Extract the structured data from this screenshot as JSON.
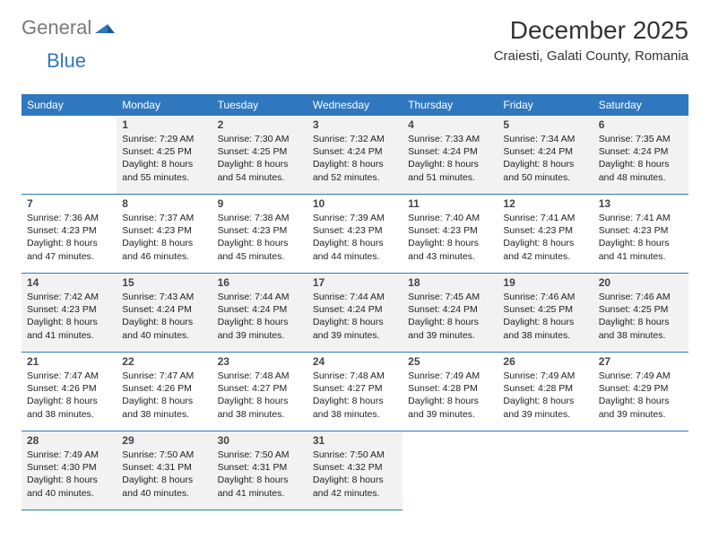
{
  "logo": {
    "part1": "General",
    "part2": "Blue"
  },
  "title": "December 2025",
  "subtitle": "Craiesti, Galati County, Romania",
  "colors": {
    "header_bg": "#2f78bf",
    "header_text": "#ffffff",
    "cell_bg": "#f2f2f2",
    "cell_alt_bg": "#ffffff",
    "border": "#2f78bf",
    "logo_gray": "#7a7a7a",
    "logo_blue": "#2f78bf"
  },
  "weekdays": [
    "Sunday",
    "Monday",
    "Tuesday",
    "Wednesday",
    "Thursday",
    "Friday",
    "Saturday"
  ],
  "start_offset": 1,
  "days": [
    {
      "n": 1,
      "sunrise": "7:29 AM",
      "sunset": "4:25 PM",
      "daylight": "8 hours and 55 minutes."
    },
    {
      "n": 2,
      "sunrise": "7:30 AM",
      "sunset": "4:25 PM",
      "daylight": "8 hours and 54 minutes."
    },
    {
      "n": 3,
      "sunrise": "7:32 AM",
      "sunset": "4:24 PM",
      "daylight": "8 hours and 52 minutes."
    },
    {
      "n": 4,
      "sunrise": "7:33 AM",
      "sunset": "4:24 PM",
      "daylight": "8 hours and 51 minutes."
    },
    {
      "n": 5,
      "sunrise": "7:34 AM",
      "sunset": "4:24 PM",
      "daylight": "8 hours and 50 minutes."
    },
    {
      "n": 6,
      "sunrise": "7:35 AM",
      "sunset": "4:24 PM",
      "daylight": "8 hours and 48 minutes."
    },
    {
      "n": 7,
      "sunrise": "7:36 AM",
      "sunset": "4:23 PM",
      "daylight": "8 hours and 47 minutes."
    },
    {
      "n": 8,
      "sunrise": "7:37 AM",
      "sunset": "4:23 PM",
      "daylight": "8 hours and 46 minutes."
    },
    {
      "n": 9,
      "sunrise": "7:38 AM",
      "sunset": "4:23 PM",
      "daylight": "8 hours and 45 minutes."
    },
    {
      "n": 10,
      "sunrise": "7:39 AM",
      "sunset": "4:23 PM",
      "daylight": "8 hours and 44 minutes."
    },
    {
      "n": 11,
      "sunrise": "7:40 AM",
      "sunset": "4:23 PM",
      "daylight": "8 hours and 43 minutes."
    },
    {
      "n": 12,
      "sunrise": "7:41 AM",
      "sunset": "4:23 PM",
      "daylight": "8 hours and 42 minutes."
    },
    {
      "n": 13,
      "sunrise": "7:41 AM",
      "sunset": "4:23 PM",
      "daylight": "8 hours and 41 minutes."
    },
    {
      "n": 14,
      "sunrise": "7:42 AM",
      "sunset": "4:23 PM",
      "daylight": "8 hours and 41 minutes."
    },
    {
      "n": 15,
      "sunrise": "7:43 AM",
      "sunset": "4:24 PM",
      "daylight": "8 hours and 40 minutes."
    },
    {
      "n": 16,
      "sunrise": "7:44 AM",
      "sunset": "4:24 PM",
      "daylight": "8 hours and 39 minutes."
    },
    {
      "n": 17,
      "sunrise": "7:44 AM",
      "sunset": "4:24 PM",
      "daylight": "8 hours and 39 minutes."
    },
    {
      "n": 18,
      "sunrise": "7:45 AM",
      "sunset": "4:24 PM",
      "daylight": "8 hours and 39 minutes."
    },
    {
      "n": 19,
      "sunrise": "7:46 AM",
      "sunset": "4:25 PM",
      "daylight": "8 hours and 38 minutes."
    },
    {
      "n": 20,
      "sunrise": "7:46 AM",
      "sunset": "4:25 PM",
      "daylight": "8 hours and 38 minutes."
    },
    {
      "n": 21,
      "sunrise": "7:47 AM",
      "sunset": "4:26 PM",
      "daylight": "8 hours and 38 minutes."
    },
    {
      "n": 22,
      "sunrise": "7:47 AM",
      "sunset": "4:26 PM",
      "daylight": "8 hours and 38 minutes."
    },
    {
      "n": 23,
      "sunrise": "7:48 AM",
      "sunset": "4:27 PM",
      "daylight": "8 hours and 38 minutes."
    },
    {
      "n": 24,
      "sunrise": "7:48 AM",
      "sunset": "4:27 PM",
      "daylight": "8 hours and 38 minutes."
    },
    {
      "n": 25,
      "sunrise": "7:49 AM",
      "sunset": "4:28 PM",
      "daylight": "8 hours and 39 minutes."
    },
    {
      "n": 26,
      "sunrise": "7:49 AM",
      "sunset": "4:28 PM",
      "daylight": "8 hours and 39 minutes."
    },
    {
      "n": 27,
      "sunrise": "7:49 AM",
      "sunset": "4:29 PM",
      "daylight": "8 hours and 39 minutes."
    },
    {
      "n": 28,
      "sunrise": "7:49 AM",
      "sunset": "4:30 PM",
      "daylight": "8 hours and 40 minutes."
    },
    {
      "n": 29,
      "sunrise": "7:50 AM",
      "sunset": "4:31 PM",
      "daylight": "8 hours and 40 minutes."
    },
    {
      "n": 30,
      "sunrise": "7:50 AM",
      "sunset": "4:31 PM",
      "daylight": "8 hours and 41 minutes."
    },
    {
      "n": 31,
      "sunrise": "7:50 AM",
      "sunset": "4:32 PM",
      "daylight": "8 hours and 42 minutes."
    }
  ],
  "labels": {
    "sunrise": "Sunrise:",
    "sunset": "Sunset:",
    "daylight": "Daylight:"
  }
}
